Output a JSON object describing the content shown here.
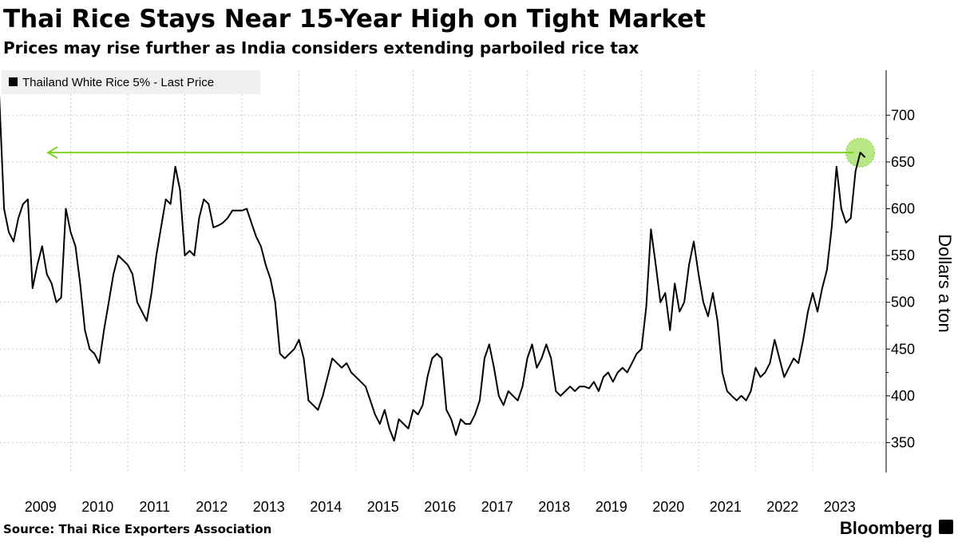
{
  "chart_data": {
    "type": "line",
    "title": "Thai Rice Stays Near 15-Year High on Tight Market",
    "subtitle": "Prices may rise further as India considers extending parboiled rice tax",
    "y_axis_label": "Dollars a ton",
    "source": "Source: Thai Rice Exporters Association",
    "brand": "Bloomberg",
    "legend_position": "top-left",
    "grid": true,
    "ylim": [
      318,
      748
    ],
    "yticks": [
      350,
      400,
      450,
      500,
      550,
      600,
      650,
      700
    ],
    "xticks": [
      2009,
      2010,
      2011,
      2012,
      2013,
      2014,
      2015,
      2016,
      2017,
      2018,
      2019,
      2020,
      2021,
      2022,
      2023
    ],
    "annotation_line": {
      "value": 660,
      "color": "#7ed321"
    },
    "x": [
      "2008-10",
      "2008-11",
      "2008-12",
      "2009-01",
      "2009-02",
      "2009-03",
      "2009-04",
      "2009-05",
      "2009-06",
      "2009-07",
      "2009-08",
      "2009-09",
      "2009-10",
      "2009-11",
      "2009-12",
      "2010-01",
      "2010-02",
      "2010-03",
      "2010-04",
      "2010-05",
      "2010-06",
      "2010-07",
      "2010-08",
      "2010-09",
      "2010-10",
      "2010-11",
      "2010-12",
      "2011-01",
      "2011-02",
      "2011-03",
      "2011-04",
      "2011-05",
      "2011-06",
      "2011-07",
      "2011-08",
      "2011-09",
      "2011-10",
      "2011-11",
      "2011-12",
      "2012-01",
      "2012-02",
      "2012-03",
      "2012-04",
      "2012-05",
      "2012-06",
      "2012-07",
      "2012-08",
      "2012-09",
      "2012-10",
      "2012-11",
      "2012-12",
      "2013-01",
      "2013-02",
      "2013-03",
      "2013-04",
      "2013-05",
      "2013-06",
      "2013-07",
      "2013-08",
      "2013-09",
      "2013-10",
      "2013-11",
      "2013-12",
      "2014-01",
      "2014-02",
      "2014-03",
      "2014-04",
      "2014-05",
      "2014-06",
      "2014-07",
      "2014-08",
      "2014-09",
      "2014-10",
      "2014-11",
      "2014-12",
      "2015-01",
      "2015-02",
      "2015-03",
      "2015-04",
      "2015-05",
      "2015-06",
      "2015-07",
      "2015-08",
      "2015-09",
      "2015-10",
      "2015-11",
      "2015-12",
      "2016-01",
      "2016-02",
      "2016-03",
      "2016-04",
      "2016-05",
      "2016-06",
      "2016-07",
      "2016-08",
      "2016-09",
      "2016-10",
      "2016-11",
      "2016-12",
      "2017-01",
      "2017-02",
      "2017-03",
      "2017-04",
      "2017-05",
      "2017-06",
      "2017-07",
      "2017-08",
      "2017-09",
      "2017-10",
      "2017-11",
      "2017-12",
      "2018-01",
      "2018-02",
      "2018-03",
      "2018-04",
      "2018-05",
      "2018-06",
      "2018-07",
      "2018-08",
      "2018-09",
      "2018-10",
      "2018-11",
      "2018-12",
      "2019-01",
      "2019-02",
      "2019-03",
      "2019-04",
      "2019-05",
      "2019-06",
      "2019-07",
      "2019-08",
      "2019-09",
      "2019-10",
      "2019-11",
      "2019-12",
      "2020-01",
      "2020-02",
      "2020-03",
      "2020-04",
      "2020-05",
      "2020-06",
      "2020-07",
      "2020-08",
      "2020-09",
      "2020-10",
      "2020-11",
      "2020-12",
      "2021-01",
      "2021-02",
      "2021-03",
      "2021-04",
      "2021-05",
      "2021-06",
      "2021-07",
      "2021-08",
      "2021-09",
      "2021-10",
      "2021-11",
      "2021-12",
      "2022-01",
      "2022-02",
      "2022-03",
      "2022-04",
      "2022-05",
      "2022-06",
      "2022-07",
      "2022-08",
      "2022-09",
      "2022-10",
      "2022-11",
      "2022-12",
      "2023-01",
      "2023-02",
      "2023-03",
      "2023-04",
      "2023-05",
      "2023-06",
      "2023-07",
      "2023-08",
      "2023-09",
      "2023-10",
      "2023-11",
      "2023-12"
    ],
    "series": [
      {
        "name": "Thailand White Rice 5% - Last Price",
        "color": "#000000",
        "values": [
          720,
          600,
          575,
          565,
          590,
          605,
          610,
          515,
          540,
          560,
          530,
          520,
          500,
          505,
          600,
          575,
          560,
          520,
          470,
          450,
          445,
          435,
          470,
          500,
          530,
          550,
          545,
          540,
          530,
          500,
          490,
          480,
          510,
          550,
          580,
          610,
          605,
          645,
          620,
          550,
          555,
          550,
          590,
          610,
          605,
          580,
          582,
          585,
          590,
          598,
          598,
          598,
          600,
          585,
          570,
          560,
          540,
          525,
          500,
          445,
          440,
          445,
          450,
          460,
          440,
          395,
          390,
          385,
          400,
          420,
          440,
          435,
          430,
          435,
          425,
          420,
          415,
          410,
          395,
          380,
          370,
          385,
          365,
          352,
          375,
          370,
          365,
          385,
          380,
          390,
          420,
          440,
          445,
          440,
          385,
          375,
          358,
          375,
          370,
          370,
          380,
          395,
          440,
          455,
          430,
          400,
          390,
          405,
          400,
          395,
          410,
          440,
          455,
          430,
          440,
          455,
          440,
          405,
          400,
          405,
          410,
          405,
          410,
          410,
          408,
          415,
          405,
          420,
          425,
          415,
          425,
          430,
          425,
          435,
          445,
          450,
          495,
          578,
          540,
          500,
          510,
          470,
          520,
          490,
          500,
          540,
          565,
          530,
          500,
          485,
          510,
          480,
          425,
          405,
          400,
          395,
          400,
          395,
          405,
          430,
          420,
          425,
          435,
          460,
          440,
          420,
          430,
          440,
          435,
          460,
          490,
          510,
          490,
          515,
          535,
          580,
          645,
          600,
          585,
          590,
          640,
          660,
          655
        ]
      }
    ]
  }
}
